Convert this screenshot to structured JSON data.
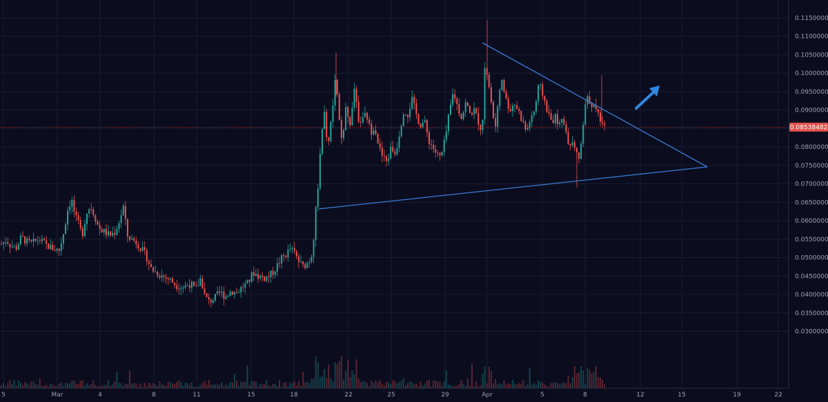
{
  "chart_data": {
    "type": "candlestick",
    "title": "",
    "xlabel": "",
    "ylabel": "",
    "ylim": [
      0.0275,
      0.1175
    ],
    "grid": true,
    "price_axis": "right",
    "y_ticks": [
      "0.11500000",
      "0.11000000",
      "0.10500000",
      "0.10000000",
      "0.09500000",
      "0.09000000",
      "0.08500000",
      "0.08000000",
      "0.07500000",
      "0.07000000",
      "0.06500000",
      "0.06000000",
      "0.05500000",
      "0.05000000",
      "0.04500000",
      "0.04000000",
      "0.03500000",
      "0.03000000"
    ],
    "x_ticks": [
      "5",
      "Mar",
      "4",
      "8",
      "11",
      "15",
      "18",
      "22",
      "25",
      "29",
      "Apr",
      "5",
      "8",
      "12",
      "15",
      "19",
      "22"
    ],
    "last_price": 0.08538482,
    "last_price_label": "0.08538482",
    "price_path": [
      [
        0,
        0.0535
      ],
      [
        8,
        0.0548
      ],
      [
        15,
        0.0532
      ],
      [
        22,
        0.0525
      ],
      [
        30,
        0.0555
      ],
      [
        38,
        0.0542
      ],
      [
        45,
        0.0538
      ],
      [
        55,
        0.055
      ],
      [
        65,
        0.0535
      ],
      [
        75,
        0.0525
      ],
      [
        85,
        0.052
      ],
      [
        92,
        0.0575
      ],
      [
        98,
        0.064
      ],
      [
        103,
        0.0655
      ],
      [
        108,
        0.061
      ],
      [
        113,
        0.059
      ],
      [
        118,
        0.056
      ],
      [
        124,
        0.062
      ],
      [
        130,
        0.064
      ],
      [
        136,
        0.0615
      ],
      [
        142,
        0.058
      ],
      [
        150,
        0.057
      ],
      [
        158,
        0.056
      ],
      [
        166,
        0.057
      ],
      [
        172,
        0.06
      ],
      [
        178,
        0.064
      ],
      [
        183,
        0.056
      ],
      [
        190,
        0.055
      ],
      [
        198,
        0.054
      ],
      [
        205,
        0.052
      ],
      [
        212,
        0.05
      ],
      [
        218,
        0.047
      ],
      [
        225,
        0.046
      ],
      [
        235,
        0.045
      ],
      [
        245,
        0.044
      ],
      [
        255,
        0.0425
      ],
      [
        265,
        0.042
      ],
      [
        275,
        0.043
      ],
      [
        282,
        0.041
      ],
      [
        290,
        0.0445
      ],
      [
        296,
        0.0395
      ],
      [
        302,
        0.038
      ],
      [
        310,
        0.039
      ],
      [
        318,
        0.0405
      ],
      [
        326,
        0.0395
      ],
      [
        334,
        0.041
      ],
      [
        342,
        0.0405
      ],
      [
        350,
        0.042
      ],
      [
        358,
        0.043
      ],
      [
        366,
        0.046
      ],
      [
        374,
        0.045
      ],
      [
        382,
        0.0445
      ],
      [
        390,
        0.045
      ],
      [
        398,
        0.047
      ],
      [
        406,
        0.0495
      ],
      [
        414,
        0.051
      ],
      [
        420,
        0.0525
      ],
      [
        426,
        0.051
      ],
      [
        432,
        0.049
      ],
      [
        438,
        0.0475
      ],
      [
        444,
        0.0485
      ],
      [
        450,
        0.05
      ],
      [
        454,
        0.056
      ],
      [
        457,
        0.064
      ],
      [
        460,
        0.07
      ],
      [
        463,
        0.078
      ],
      [
        466,
        0.084
      ],
      [
        470,
        0.09
      ],
      [
        474,
        0.078
      ],
      [
        478,
        0.086
      ],
      [
        482,
        0.092
      ],
      [
        486,
        0.1
      ],
      [
        490,
        0.088
      ],
      [
        495,
        0.08
      ],
      [
        500,
        0.09
      ],
      [
        506,
        0.086
      ],
      [
        512,
        0.096
      ],
      [
        518,
        0.088
      ],
      [
        524,
        0.087
      ],
      [
        530,
        0.089
      ],
      [
        536,
        0.084
      ],
      [
        542,
        0.086
      ],
      [
        548,
        0.08
      ],
      [
        554,
        0.077
      ],
      [
        560,
        0.076
      ],
      [
        566,
        0.08
      ],
      [
        572,
        0.078
      ],
      [
        578,
        0.084
      ],
      [
        584,
        0.09
      ],
      [
        590,
        0.089
      ],
      [
        596,
        0.093
      ],
      [
        602,
        0.089
      ],
      [
        608,
        0.086
      ],
      [
        614,
        0.087
      ],
      [
        620,
        0.082
      ],
      [
        626,
        0.08
      ],
      [
        632,
        0.078
      ],
      [
        638,
        0.077
      ],
      [
        644,
        0.082
      ],
      [
        650,
        0.089
      ],
      [
        656,
        0.095
      ],
      [
        662,
        0.091
      ],
      [
        668,
        0.088
      ],
      [
        674,
        0.092
      ],
      [
        680,
        0.089
      ],
      [
        686,
        0.09
      ],
      [
        692,
        0.087
      ],
      [
        698,
        0.084
      ],
      [
        702,
        0.104
      ],
      [
        706,
        0.098
      ],
      [
        710,
        0.093
      ],
      [
        714,
        0.088
      ],
      [
        718,
        0.085
      ],
      [
        722,
        0.094
      ],
      [
        726,
        0.099
      ],
      [
        732,
        0.093
      ],
      [
        738,
        0.09
      ],
      [
        744,
        0.092
      ],
      [
        750,
        0.09
      ],
      [
        756,
        0.087
      ],
      [
        762,
        0.084
      ],
      [
        768,
        0.088
      ],
      [
        774,
        0.09
      ],
      [
        780,
        0.097
      ],
      [
        786,
        0.094
      ],
      [
        792,
        0.09
      ],
      [
        798,
        0.087
      ],
      [
        804,
        0.088
      ],
      [
        810,
        0.086
      ],
      [
        816,
        0.087
      ],
      [
        822,
        0.082
      ],
      [
        828,
        0.081
      ],
      [
        834,
        0.078
      ],
      [
        838,
        0.077
      ],
      [
        842,
        0.081
      ],
      [
        846,
        0.09
      ],
      [
        850,
        0.093
      ],
      [
        856,
        0.092
      ],
      [
        862,
        0.09
      ],
      [
        868,
        0.088
      ],
      [
        874,
        0.087
      ],
      [
        878,
        0.0854
      ]
    ]
  }
}
